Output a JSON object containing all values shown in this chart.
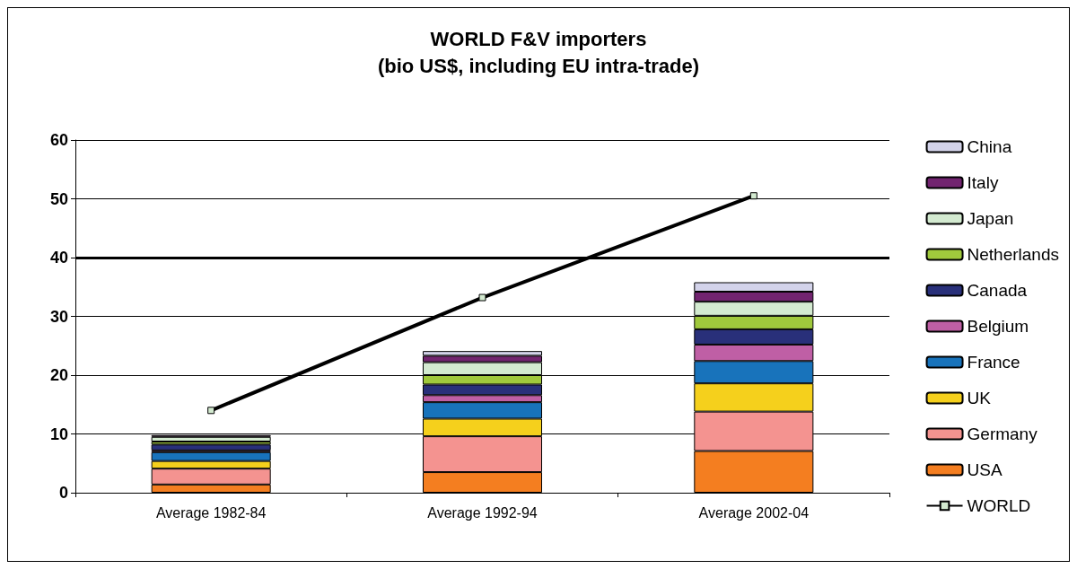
{
  "chart_data": {
    "type": "bar",
    "title": "WORLD F&V importers\n(bio US$, including EU intra-trade)",
    "categories": [
      "Average 1982-84",
      "Average 1992-94",
      "Average 2002-04"
    ],
    "stacked": true,
    "series": [
      {
        "name": "USA",
        "color": "#f47e20",
        "values": [
          1.4,
          3.5,
          7.1
        ]
      },
      {
        "name": "Germany",
        "color": "#f49390",
        "values": [
          2.7,
          6.1,
          6.7
        ]
      },
      {
        "name": "UK",
        "color": "#f5d01c",
        "values": [
          1.3,
          3.0,
          4.8
        ]
      },
      {
        "name": "France",
        "color": "#1873bb",
        "values": [
          1.5,
          2.8,
          3.8
        ]
      },
      {
        "name": "Belgium",
        "color": "#bf5fa5",
        "values": [
          0.3,
          1.2,
          2.8
        ]
      },
      {
        "name": "Canada",
        "color": "#29307a",
        "values": [
          1.0,
          1.8,
          2.6
        ]
      },
      {
        "name": "Netherlands",
        "color": "#a0c93c",
        "values": [
          0.5,
          1.6,
          2.3
        ]
      },
      {
        "name": "Japan",
        "color": "#d3ead0",
        "values": [
          0.8,
          2.2,
          2.4
        ]
      },
      {
        "name": "Italy",
        "color": "#722470",
        "values": [
          0.3,
          1.1,
          1.7
        ]
      },
      {
        "name": "China",
        "color": "#d3d3ea",
        "values": [
          null,
          0.8,
          1.6
        ]
      },
      {
        "name": "WORLD",
        "type": "line",
        "color": "#000000",
        "values": [
          14,
          33.2,
          50.5
        ]
      }
    ],
    "ylim": [
      0,
      60
    ],
    "yticks": [
      0,
      10,
      20,
      30,
      40,
      50,
      60
    ],
    "grid": "y",
    "legend": "right",
    "marker": "square",
    "line_style": "solid",
    "ref_lines": [
      {
        "axis": "y",
        "value": 40,
        "color": "#000000"
      }
    ]
  }
}
